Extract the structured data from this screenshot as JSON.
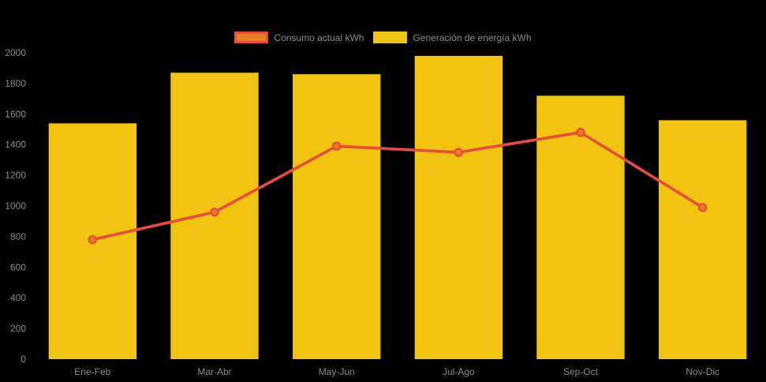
{
  "background_color": "#000000",
  "axis_text_color": "#8b8b8b",
  "legend": {
    "items": [
      {
        "label": "Consumo actual kWh",
        "swatch_fill": "#e67e22",
        "swatch_border": "#e74c3c"
      },
      {
        "label": "Generación de energía kWh",
        "swatch_fill": "#f1c40f",
        "swatch_border": "#f1c40f"
      }
    ]
  },
  "chart_data": {
    "type": "combo",
    "title": "",
    "xlabel": "",
    "ylabel": "",
    "categories": [
      "Ene-Feb",
      "Mar-Abr",
      "May-Jun",
      "Jul-Ago",
      "Sep-Oct",
      "Nov-Dic"
    ],
    "series": [
      {
        "name": "Generación de energía kWh",
        "type": "bar",
        "color": "#f1c40f",
        "values": [
          1540,
          1870,
          1860,
          1980,
          1720,
          1560
        ]
      },
      {
        "name": "Consumo actual kWh",
        "type": "line",
        "color": "#e74c3c",
        "marker_fill": "#e67e22",
        "values": [
          780,
          960,
          1390,
          1350,
          1480,
          990
        ]
      }
    ],
    "ylim": [
      0,
      2000
    ],
    "yticks": [
      0,
      200,
      400,
      600,
      800,
      1000,
      1200,
      1400,
      1600,
      1800,
      2000
    ],
    "grid": false,
    "legend_position": "top"
  }
}
